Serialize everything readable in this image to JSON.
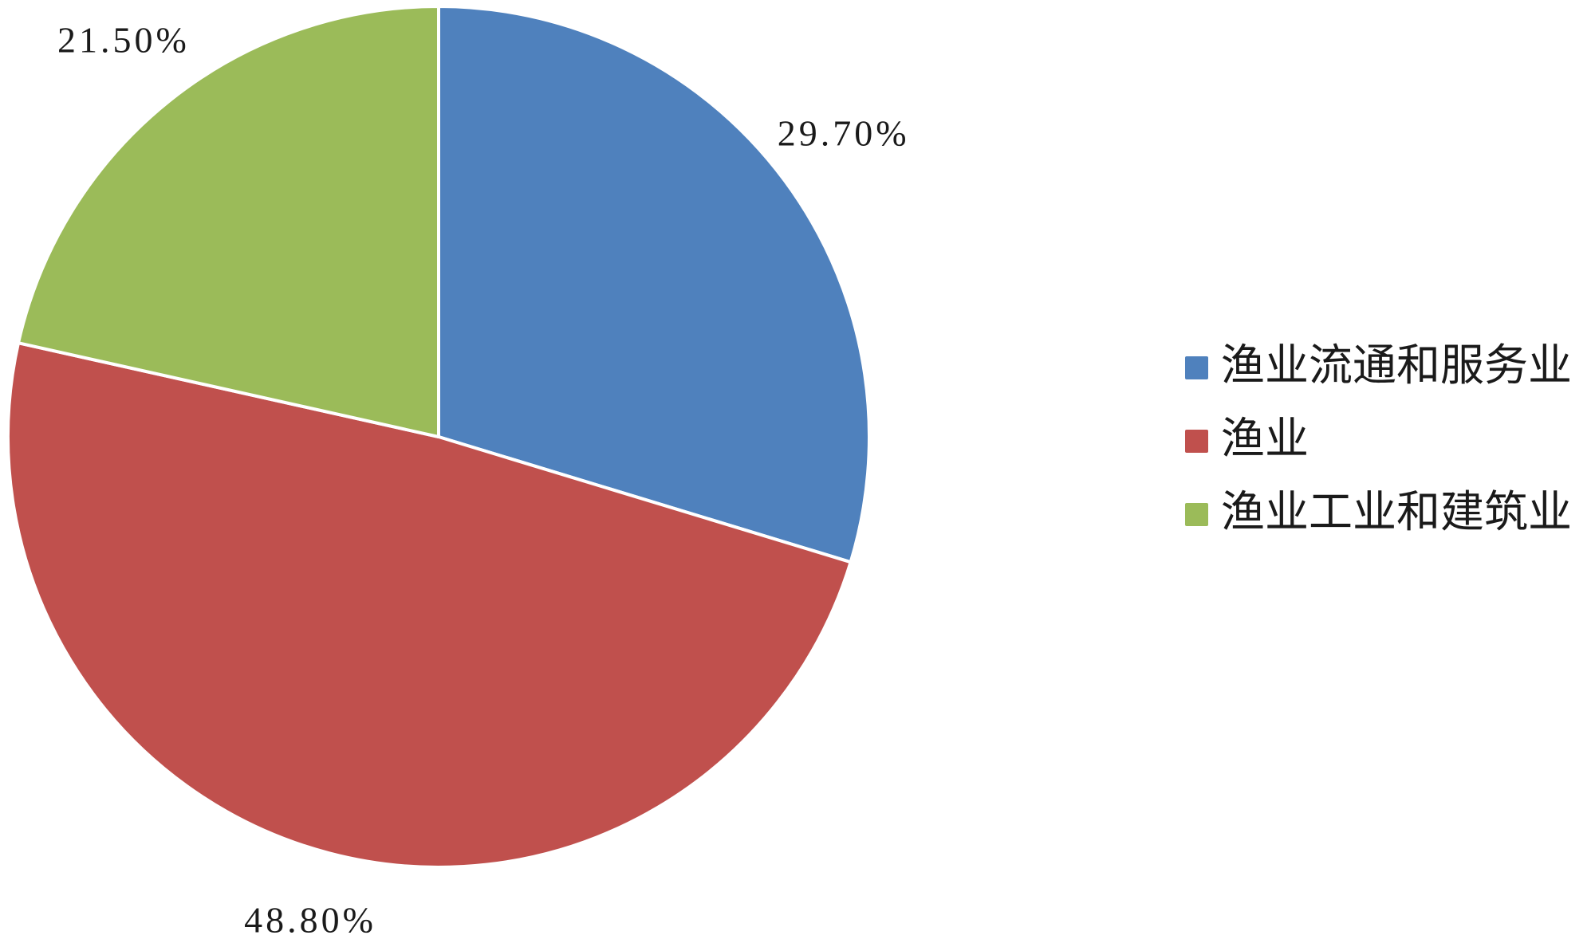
{
  "chart_data": {
    "type": "pie",
    "categories": [
      "渔业流通和服务业",
      "渔业",
      "渔业工业和建筑业"
    ],
    "values": [
      29.7,
      48.8,
      21.5
    ],
    "value_labels": [
      "29.70%",
      "48.80%",
      "21.50%"
    ],
    "colors": [
      "#4f81bd",
      "#c0504d",
      "#9bbb59"
    ],
    "legend": "right"
  }
}
